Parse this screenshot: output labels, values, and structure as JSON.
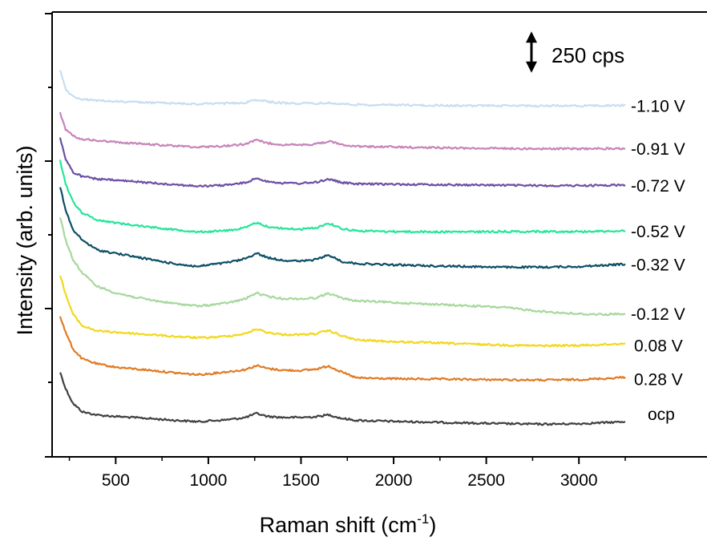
{
  "chart_data": {
    "type": "line",
    "xlabel": "Raman shift (cm",
    "xlabel_sup": "-1",
    "xlabel_end": ")",
    "ylabel": "Intensity (arb. units)",
    "xlim": [
      200,
      3250
    ],
    "xticks": [
      500,
      1000,
      1500,
      2000,
      2500,
      3000
    ],
    "x_minor_step": 250,
    "y_units": "cps",
    "ylim": [
      0,
      2500
    ],
    "scale_bar": {
      "label": "250 cps",
      "value": 250
    },
    "x": [
      200,
      230,
      270,
      320,
      400,
      500,
      600,
      700,
      800,
      900,
      950,
      1000,
      1080,
      1150,
      1200,
      1260,
      1320,
      1400,
      1500,
      1580,
      1650,
      1720,
      1800,
      2000,
      2200,
      2400,
      2600,
      2800,
      3000,
      3150,
      3250
    ],
    "series": [
      {
        "name": "ocp",
        "color": "#404040",
        "y": [
          440,
          340,
          250,
          200,
          180,
          172,
          165,
          158,
          150,
          143,
          140,
          145,
          150,
          158,
          166,
          190,
          172,
          166,
          166,
          170,
          182,
          160,
          148,
          142,
          137,
          132,
          128,
          125,
          128,
          135,
          140
        ]
      },
      {
        "name": "0.28 V",
        "color": "#e07b24",
        "y": [
          780,
          680,
          580,
          520,
          490,
          470,
          460,
          450,
          438,
          428,
          425,
          430,
          440,
          448,
          456,
          480,
          462,
          452,
          450,
          458,
          478,
          440,
          405,
          400,
          398,
          396,
          394,
          392,
          395,
          402,
          410
        ]
      },
      {
        "name": "0.08 V",
        "color": "#f2d81c",
        "y": [
          1030,
          910,
          790,
          720,
          690,
          682,
          674,
          666,
          658,
          651,
          648,
          650,
          656,
          665,
          673,
          702,
          680,
          668,
          667,
          673,
          692,
          660,
          635,
          625,
          618,
          611,
          604,
          600,
          602,
          608,
          615
        ]
      },
      {
        "name": "-0.12 V",
        "color": "#a6d89b",
        "y": [
          1380,
          1240,
          1120,
          1040,
          960,
          920,
          895,
          875,
          858,
          846,
          840,
          846,
          856,
          870,
          885,
          920,
          898,
          886,
          884,
          890,
          918,
          888,
          872,
          862,
          852,
          842,
          832,
          808,
          792,
          790,
          795
        ]
      },
      {
        "name": "-0.32 V",
        "color": "#0d4f66",
        "y": [
          1560,
          1420,
          1300,
          1240,
          1180,
          1160,
          1140,
          1120,
          1100,
          1085,
          1080,
          1090,
          1100,
          1114,
          1128,
          1160,
          1134,
          1118,
          1112,
          1122,
          1150,
          1110,
          1098,
          1090,
          1084,
          1080,
          1076,
          1076,
          1080,
          1088,
          1095
        ]
      },
      {
        "name": "-0.52 V",
        "color": "#23e69b",
        "y": [
          1720,
          1580,
          1470,
          1405,
          1362,
          1345,
          1330,
          1318,
          1305,
          1295,
          1290,
          1292,
          1296,
          1305,
          1315,
          1345,
          1322,
          1310,
          1306,
          1314,
          1342,
          1310,
          1296,
          1292,
          1290,
          1290,
          1292,
          1292,
          1292,
          1294,
          1296
        ]
      },
      {
        "name": "-0.72 V",
        "color": "#6c4fa3",
        "y": [
          1860,
          1730,
          1650,
          1625,
          1610,
          1602,
          1594,
          1586,
          1578,
          1570,
          1566,
          1568,
          1572,
          1580,
          1588,
          1614,
          1596,
          1585,
          1584,
          1590,
          1610,
          1588,
          1580,
          1578,
          1576,
          1574,
          1572,
          1570,
          1570,
          1572,
          1574
        ]
      },
      {
        "name": "-0.91 V",
        "color": "#c784bb",
        "y": [
          2010,
          1910,
          1870,
          1852,
          1842,
          1834,
          1826,
          1818,
          1812,
          1806,
          1804,
          1806,
          1810,
          1816,
          1822,
          1845,
          1828,
          1818,
          1816,
          1822,
          1838,
          1818,
          1808,
          1804,
          1800,
          1797,
          1795,
          1793,
          1793,
          1794,
          1795
        ]
      },
      {
        "name": "-1.10 V",
        "color": "#c8ddf2",
        "y": [
          2270,
          2150,
          2110,
          2092,
          2085,
          2080,
          2076,
          2072,
          2068,
          2065,
          2064,
          2065,
          2067,
          2070,
          2074,
          2090,
          2078,
          2070,
          2068,
          2068,
          2070,
          2064,
          2060,
          2058,
          2056,
          2054,
          2054,
          2053,
          2054,
          2055,
          2056
        ]
      }
    ]
  }
}
